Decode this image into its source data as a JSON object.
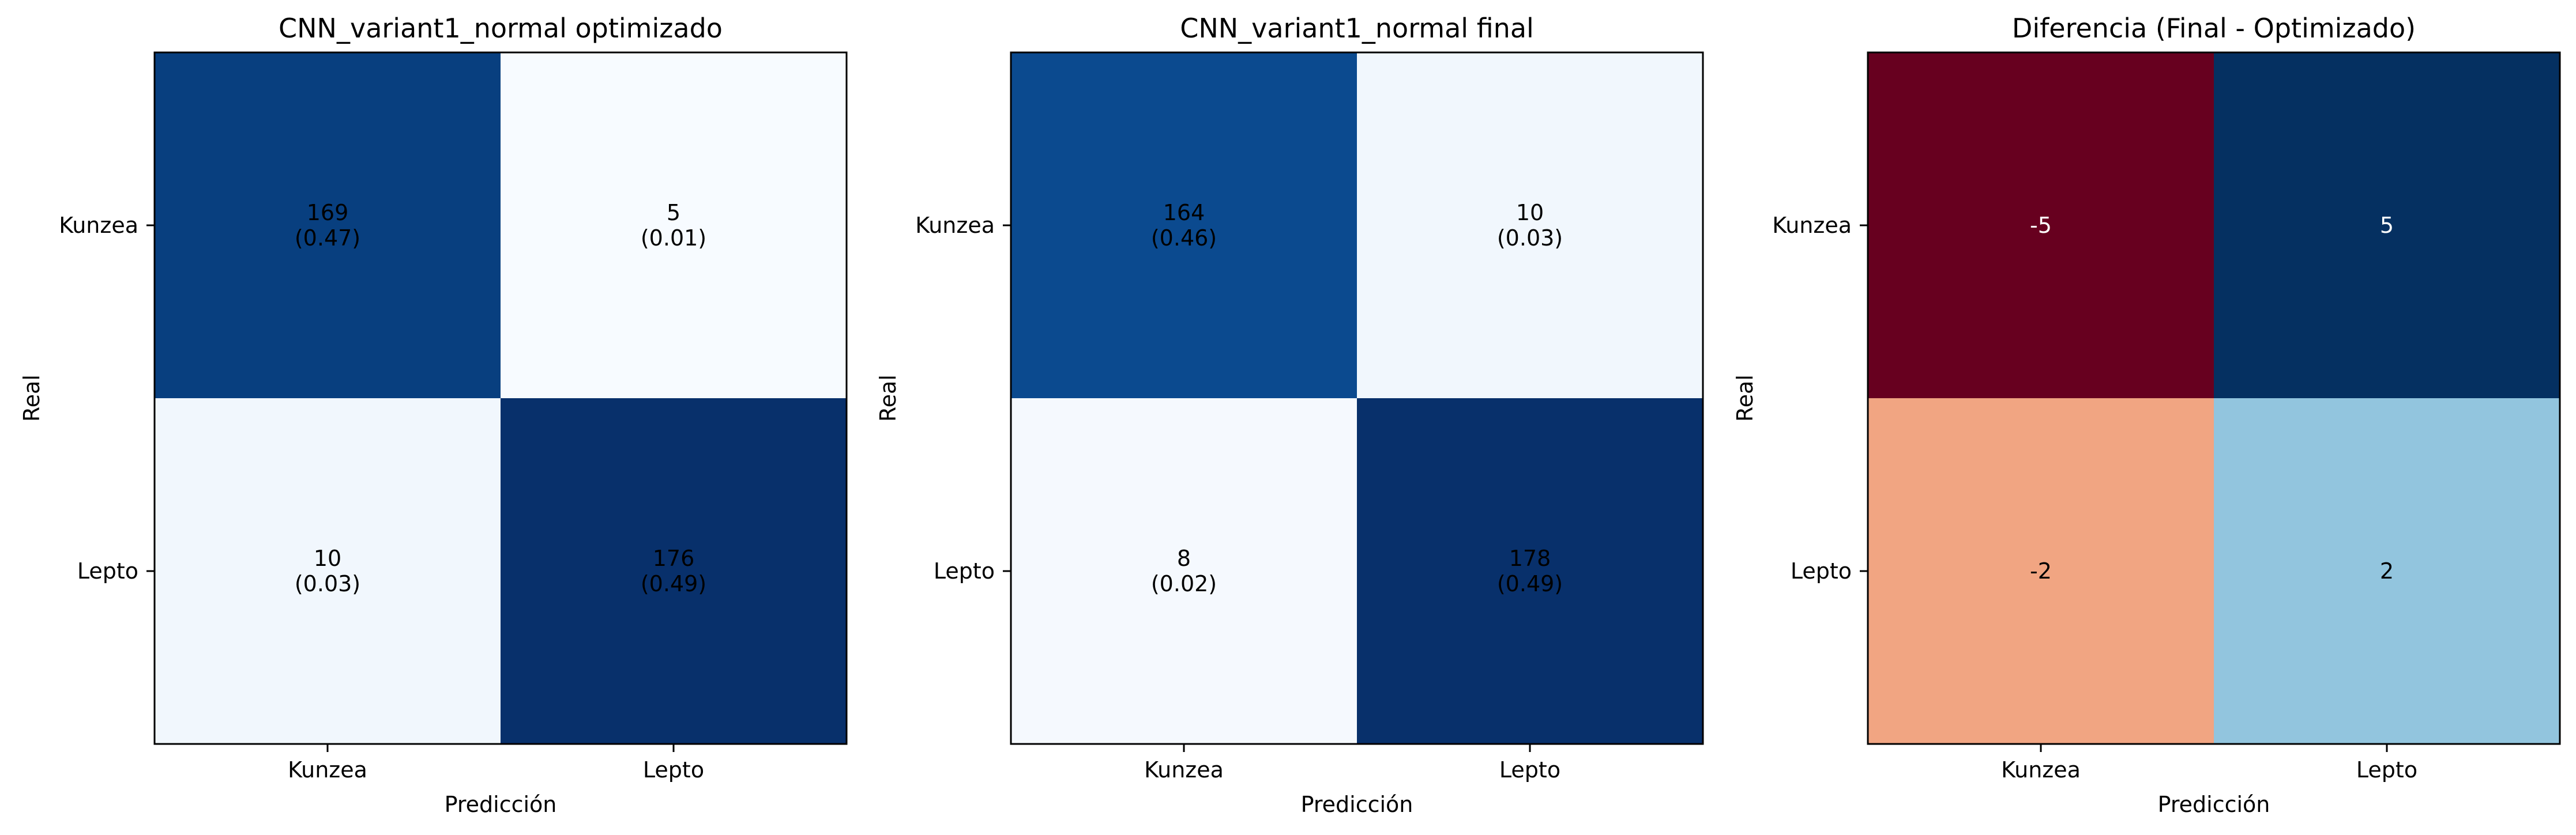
{
  "chart_data": [
    {
      "type": "heatmap",
      "title": "CNN_variant1_normal optimizado",
      "xlabel": "Predicción",
      "ylabel": "Real",
      "x_categories": [
        "Kunzea",
        "Lepto"
      ],
      "y_categories": [
        "Kunzea",
        "Lepto"
      ],
      "colormap": "Blues",
      "values": [
        [
          169,
          5
        ],
        [
          10,
          176
        ]
      ],
      "cell_text": [
        [
          "169\n(0.47)",
          "5\n(0.01)"
        ],
        [
          "10\n(0.03)",
          "176\n(0.49)"
        ]
      ],
      "cell_colors": [
        [
          "#083f7f",
          "#f7fbff"
        ],
        [
          "#f1f7fd",
          "#08306b"
        ]
      ],
      "text_color": "#000000"
    },
    {
      "type": "heatmap",
      "title": "CNN_variant1_normal final",
      "xlabel": "Predicción",
      "ylabel": "Real",
      "x_categories": [
        "Kunzea",
        "Lepto"
      ],
      "y_categories": [
        "Kunzea",
        "Lepto"
      ],
      "colormap": "Blues",
      "values": [
        [
          164,
          10
        ],
        [
          8,
          178
        ]
      ],
      "cell_text": [
        [
          "164\n(0.46)",
          "10\n(0.03)"
        ],
        [
          "8\n(0.02)",
          "178\n(0.49)"
        ]
      ],
      "cell_colors": [
        [
          "#0b4a8f",
          "#f1f7fd"
        ],
        [
          "#f5f9fe",
          "#08306b"
        ]
      ],
      "text_color": "#000000"
    },
    {
      "type": "heatmap",
      "title": "Diferencia (Final - Optimizado)",
      "xlabel": "Predicción",
      "ylabel": "Real",
      "x_categories": [
        "Kunzea",
        "Lepto"
      ],
      "y_categories": [
        "Kunzea",
        "Lepto"
      ],
      "colormap": "RdBu",
      "values": [
        [
          -5,
          5
        ],
        [
          -2,
          2
        ]
      ],
      "cell_text": [
        [
          "-5",
          "5"
        ],
        [
          "-2",
          "2"
        ]
      ],
      "cell_colors": [
        [
          "#67001f",
          "#053061"
        ],
        [
          "#f1a582",
          "#92c5de"
        ]
      ],
      "cell_text_colors": [
        [
          "#ffffff",
          "#ffffff"
        ],
        [
          "#000000",
          "#000000"
        ]
      ]
    }
  ]
}
